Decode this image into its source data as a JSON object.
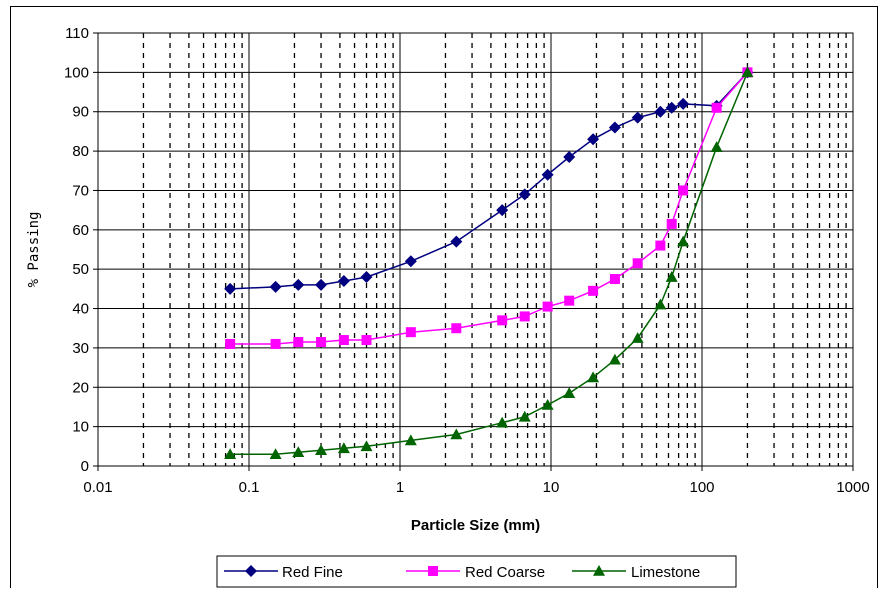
{
  "chart_data": {
    "type": "line",
    "title": "",
    "xlabel": "Particle Size (mm)",
    "ylabel": "% Passing",
    "x_scale": "log",
    "xlim": [
      0.01,
      1000
    ],
    "ylim": [
      0,
      110
    ],
    "x_ticks": [
      "0.01",
      "0.1",
      "1",
      "10",
      "100",
      "1000"
    ],
    "y_ticks": [
      "0",
      "10",
      "20",
      "30",
      "40",
      "50",
      "60",
      "70",
      "80",
      "90",
      "100",
      "110"
    ],
    "grid": true,
    "legend_position": "bottom",
    "series": [
      {
        "name": "Red Fine",
        "color": "#000080",
        "marker": "diamond",
        "x": [
          0.075,
          0.15,
          0.212,
          0.3,
          0.425,
          0.6,
          1.18,
          2.36,
          4.75,
          6.7,
          9.5,
          13.2,
          19,
          26.5,
          37.5,
          53,
          63,
          75,
          125,
          200
        ],
        "y": [
          45,
          45.5,
          46,
          46,
          47,
          48,
          52,
          57,
          65,
          69,
          74,
          78.5,
          83,
          86,
          88.5,
          90,
          91,
          92,
          91.5,
          100
        ]
      },
      {
        "name": "Red Coarse",
        "color": "#ff00ff",
        "marker": "square",
        "x": [
          0.075,
          0.15,
          0.212,
          0.3,
          0.425,
          0.6,
          1.18,
          2.36,
          4.75,
          6.7,
          9.5,
          13.2,
          19,
          26.5,
          37.5,
          53,
          63,
          75,
          125,
          200
        ],
        "y": [
          31,
          31,
          31.5,
          31.5,
          32,
          32,
          34,
          35,
          37,
          38,
          40.5,
          42,
          44.5,
          47.5,
          51.5,
          56,
          61.5,
          70,
          91,
          100
        ]
      },
      {
        "name": "Limestone",
        "color": "#006400",
        "marker": "triangle",
        "x": [
          0.075,
          0.15,
          0.212,
          0.3,
          0.425,
          0.6,
          1.18,
          2.36,
          4.75,
          6.7,
          9.5,
          13.2,
          19,
          26.5,
          37.5,
          53,
          63,
          75,
          125,
          200
        ],
        "y": [
          3,
          3,
          3.5,
          4,
          4.5,
          5,
          6.5,
          8,
          11,
          12.5,
          15.5,
          18.5,
          22.5,
          27,
          32.5,
          41,
          48,
          57,
          81,
          100
        ]
      }
    ]
  }
}
